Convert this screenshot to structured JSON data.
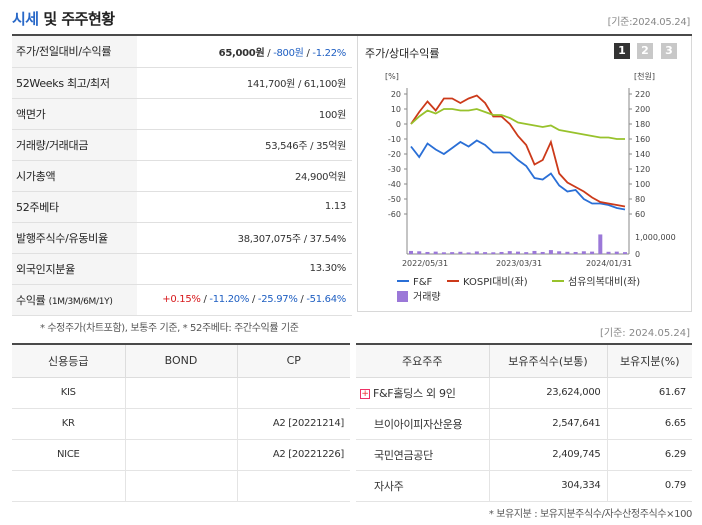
{
  "header": {
    "title_prefix": "시세",
    "title_rest": " 및 주주현황",
    "date": "[기준:2024.05.24]"
  },
  "quote_rows": {
    "price": {
      "label": "주가/전일대비/수익률",
      "price": "65,000원",
      "sep1": " / ",
      "change": "-800원",
      "sep2": " / ",
      "rate": "-1.22%"
    },
    "w52": {
      "label": "52Weeks 최고/최저",
      "value": "141,700원 / 61,100원"
    },
    "par": {
      "label": "액면가",
      "value": "100원"
    },
    "volume": {
      "label": "거래량/거래대금",
      "value": "53,546주 / 35억원"
    },
    "mcap": {
      "label": "시가총액",
      "value": "24,900억원"
    },
    "beta": {
      "label": "52주베타",
      "value": "1.13"
    },
    "shares": {
      "label": "발행주식수/유동비율",
      "value": "38,307,075주 / 37.54%"
    },
    "foreign": {
      "label": "외국인지분율",
      "value": "13.30%"
    },
    "returns": {
      "label": "수익률",
      "label_sub": "(1M/3M/6M/1Y)",
      "r1": "+0.15%",
      "r2": "-11.20%",
      "r3": "-25.97%",
      "r4": "-51.64%",
      "sep": " / "
    }
  },
  "note1": "* 수정주가(차트포함), 보통주 기준, * 52주베타: 주간수익률 기준",
  "chart_panel": {
    "title": "주가/상대수익률",
    "pages": [
      "1",
      "2",
      "3"
    ],
    "active_page": "1"
  },
  "chart_data": {
    "type": "line",
    "left_axis_unit": "[%]",
    "right_axis_unit": "[천원]",
    "left_ticks": [
      "20",
      "10",
      "0",
      "-10",
      "-20",
      "-30",
      "-40",
      "-50",
      "-60"
    ],
    "right_ticks": [
      "220",
      "200",
      "180",
      "160",
      "140",
      "120",
      "100",
      "80",
      "60"
    ],
    "left_ylim": [
      -60,
      20
    ],
    "right_ylim": [
      60,
      220
    ],
    "volume_tick": "1,000,000",
    "volume_zero": "0",
    "x_ticks": [
      "2022/05/31",
      "2023/03/31",
      "2024/01/31"
    ],
    "series": [
      {
        "name": "F&F",
        "color": "#2a6fd6",
        "axis": "left",
        "values": [
          -15,
          -22,
          -13,
          -17,
          -20,
          -16,
          -12,
          -15,
          -11,
          -14,
          -19,
          -19,
          -19,
          -24,
          -28,
          -36,
          -37,
          -33,
          -41,
          -45,
          -44,
          -50,
          -53,
          -53,
          -54,
          -56,
          -57
        ]
      },
      {
        "name": "KOSPI대비(좌)",
        "color": "#cc3a1a",
        "axis": "left",
        "values": [
          0,
          8,
          15,
          9,
          17,
          17,
          14,
          17,
          19,
          14,
          5,
          5,
          0,
          -8,
          -14,
          -27,
          -24,
          -12,
          -33,
          -39,
          -42,
          -45,
          -49,
          -52,
          -53,
          -54,
          -55
        ]
      },
      {
        "name": "섬유의복대비(좌)",
        "color": "#98c22c",
        "axis": "left",
        "values": [
          0,
          5,
          9,
          7,
          10,
          10,
          9,
          9,
          10,
          8,
          6,
          6,
          4,
          1,
          0,
          -1,
          -2,
          -1,
          -4,
          -5,
          -6,
          -7,
          -8,
          -9,
          -9,
          -10,
          -10
        ]
      }
    ],
    "volume": {
      "name": "거래량",
      "color": "#9b78d8",
      "ylim": [
        0,
        1000000
      ],
      "values": [
        180000,
        160000,
        120000,
        140000,
        100000,
        110000,
        130000,
        90000,
        150000,
        110000,
        100000,
        120000,
        170000,
        140000,
        110000,
        180000,
        120000,
        230000,
        160000,
        130000,
        120000,
        160000,
        140000,
        1220000,
        130000,
        140000,
        110000
      ]
    }
  },
  "date_mid": "[기준: 2024.05.24]",
  "credit_table": {
    "headers": [
      "신용등급",
      "BOND",
      "CP"
    ],
    "rows": [
      [
        "KIS",
        "",
        ""
      ],
      [
        "KR",
        "",
        "A2 [20221214]"
      ],
      [
        "NICE",
        "",
        "A2 [20221226]"
      ],
      [
        "",
        "",
        ""
      ]
    ]
  },
  "holders_table": {
    "headers": [
      "주요주주",
      "보유주식수(보통)",
      "보유지분(%)"
    ],
    "rows": [
      [
        "F&F홀딩스 외 9인",
        "23,624,000",
        "61.67"
      ],
      [
        "브이아이피자산운용",
        "2,547,641",
        "6.65"
      ],
      [
        "국민연금공단",
        "2,409,745",
        "6.29"
      ],
      [
        "자사주",
        "304,334",
        "0.79"
      ]
    ],
    "expand_icon": "+"
  },
  "note2": "* 보유지분 : 보유지분주식수/자수산정주식수×100"
}
